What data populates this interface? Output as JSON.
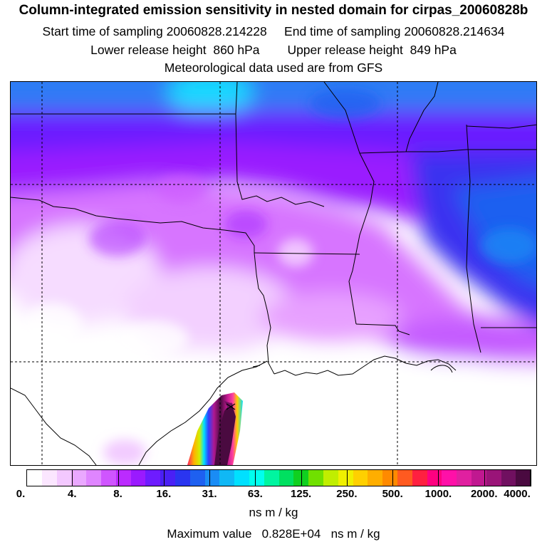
{
  "header": {
    "title": "Column-integrated emission sensitivity in nested domain for cirpas_20060828b",
    "line2": "Start time of sampling 20060828.214228     End time of sampling 20060828.214634",
    "line3": "Lower release height  860 hPa        Upper release height  849 hPa",
    "line4": "Meteorological data used are from GFS"
  },
  "colorbar": {
    "colors": [
      "#ffffff",
      "#fbe6ff",
      "#f3c8ff",
      "#eaa8ff",
      "#df85ff",
      "#cf55ff",
      "#bb2bff",
      "#9a1aff",
      "#6e1cff",
      "#4a20f5",
      "#2a35f0",
      "#1e60f0",
      "#1a8cf5",
      "#10b8f5",
      "#00e0ff",
      "#00ffee",
      "#00f5a0",
      "#00e060",
      "#10d020",
      "#70e000",
      "#c0ee00",
      "#f0f000",
      "#ffd000",
      "#ffae00",
      "#ff8a00",
      "#ff5a20",
      "#ff2040",
      "#ff0080",
      "#ff10a8",
      "#e020a0",
      "#c01890",
      "#9a1478",
      "#701060",
      "#4a0a40"
    ],
    "tick_labels": [
      "0.",
      "4.",
      "8.",
      "16.",
      "31.",
      "63.",
      "125.",
      "250.",
      "500.",
      "1000.",
      "2000.",
      "4000."
    ],
    "units": "ns m / kg"
  },
  "footer": {
    "max_label": "Maximum value",
    "max_value": "0.828E+04",
    "max_units": "ns m / kg"
  }
}
